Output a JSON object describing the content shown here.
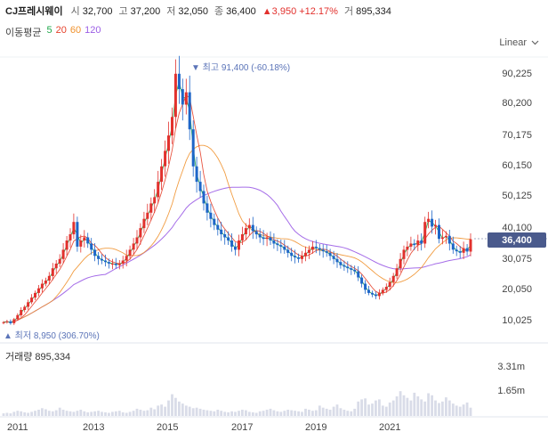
{
  "header": {
    "name": "CJ프레시웨이",
    "open_label": "시",
    "open": "32,700",
    "high_label": "고",
    "high": "37,200",
    "low_label": "저",
    "low": "32,050",
    "close_label": "종",
    "close": "36,400",
    "change": "▲3,950",
    "change_pct": "+12.17%",
    "volume_label": "거",
    "volume": "895,334"
  },
  "moving_averages": {
    "label": "이동평균",
    "items": [
      {
        "label": "5",
        "color": "#1fa84a"
      },
      {
        "label": "20",
        "color": "#e6412b"
      },
      {
        "label": "60",
        "color": "#f0912c"
      },
      {
        "label": "120",
        "color": "#9b5de5"
      }
    ]
  },
  "scale_selector": {
    "label": "Linear",
    "icon": "chevron-down-icon"
  },
  "y_axis": [
    "90,225",
    "80,200",
    "70,175",
    "60,150",
    "50,125",
    "40,100",
    "30,075",
    "20,050",
    "10,025"
  ],
  "current_price_tag": "36,400",
  "annotations": {
    "high": "▼ 최고 91,400 (-60.18%)",
    "low": "▲ 최저 8,950 (306.70%)"
  },
  "volume_panel": {
    "title": "거래량 895,334",
    "ticks": [
      "3.31m",
      "1.65m"
    ]
  },
  "x_axis": [
    "2011",
    "2013",
    "2015",
    "2017",
    "2019",
    "2021"
  ],
  "colors": {
    "up": "#e2312d",
    "down": "#1e66c8",
    "volume": "#d9dce8",
    "tag": "#4a5a8c"
  },
  "chart_data": {
    "type": "candlestick",
    "interval": "monthly",
    "x_start": "2010-12",
    "x_end": "2022-12",
    "ylim": [
      10025,
      90225
    ],
    "close_series": [
      9500,
      9800,
      9200,
      10500,
      11800,
      13500,
      14500,
      16000,
      17500,
      19000,
      20500,
      22000,
      23000,
      24500,
      27000,
      28500,
      30000,
      33000,
      36000,
      38000,
      42000,
      34000,
      36000,
      37000,
      35000,
      33000,
      31000,
      30000,
      29500,
      29000,
      28500,
      28500,
      28000,
      28500,
      29500,
      31000,
      33000,
      35000,
      37000,
      40000,
      43000,
      45000,
      48000,
      50000,
      55000,
      60000,
      65000,
      70000,
      76000,
      90000,
      85000,
      80000,
      84000,
      72000,
      60000,
      55000,
      52000,
      48000,
      45000,
      43000,
      41000,
      39500,
      38000,
      37000,
      36000,
      34000,
      33000,
      36000,
      38000,
      40000,
      41000,
      39000,
      38000,
      37000,
      36500,
      37000,
      36000,
      35000,
      34500,
      34000,
      33000,
      32000,
      31000,
      30500,
      30000,
      31000,
      32000,
      33000,
      34000,
      33500,
      33000,
      32500,
      32000,
      31000,
      30000,
      29000,
      28000,
      27500,
      27000,
      26500,
      26000,
      24000,
      22000,
      20000,
      19000,
      18500,
      18000,
      19000,
      20000,
      21000,
      22500,
      24500,
      27000,
      30000,
      33000,
      34000,
      35000,
      34500,
      36000,
      35000,
      42000,
      43000,
      40500,
      41000,
      36500,
      37000,
      37500,
      35000,
      33000,
      32500,
      32000,
      33500,
      32400,
      36400
    ],
    "volume_relative": [
      0.05,
      0.06,
      0.05,
      0.08,
      0.1,
      0.09,
      0.07,
      0.06,
      0.08,
      0.1,
      0.12,
      0.15,
      0.13,
      0.1,
      0.09,
      0.11,
      0.16,
      0.12,
      0.1,
      0.09,
      0.08,
      0.1,
      0.12,
      0.09,
      0.07,
      0.08,
      0.09,
      0.1,
      0.08,
      0.07,
      0.06,
      0.08,
      0.09,
      0.1,
      0.07,
      0.06,
      0.08,
      0.1,
      0.14,
      0.12,
      0.1,
      0.11,
      0.16,
      0.13,
      0.2,
      0.22,
      0.18,
      0.3,
      0.42,
      0.35,
      0.28,
      0.24,
      0.2,
      0.18,
      0.15,
      0.16,
      0.14,
      0.12,
      0.11,
      0.1,
      0.09,
      0.12,
      0.1,
      0.08,
      0.07,
      0.09,
      0.08,
      0.1,
      0.12,
      0.11,
      0.08,
      0.07,
      0.06,
      0.09,
      0.1,
      0.12,
      0.14,
      0.11,
      0.09,
      0.08,
      0.1,
      0.12,
      0.11,
      0.1,
      0.09,
      0.08,
      0.14,
      0.12,
      0.1,
      0.11,
      0.2,
      0.16,
      0.14,
      0.12,
      0.18,
      0.22,
      0.15,
      0.12,
      0.1,
      0.09,
      0.14,
      0.28,
      0.32,
      0.34,
      0.22,
      0.24,
      0.3,
      0.32,
      0.2,
      0.18,
      0.26,
      0.3,
      0.38,
      0.48,
      0.4,
      0.35,
      0.3,
      0.45,
      0.38,
      0.32,
      0.28,
      0.44,
      0.4,
      0.3,
      0.25,
      0.28,
      0.36,
      0.3,
      0.24,
      0.2,
      0.18,
      0.22,
      0.26,
      0.16
    ]
  }
}
